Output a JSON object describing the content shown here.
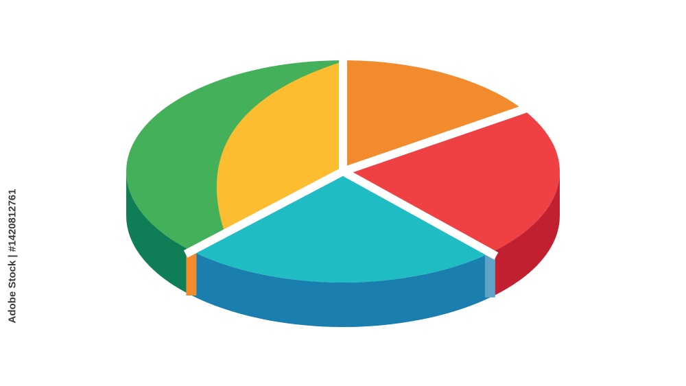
{
  "chart_data": {
    "type": "pie",
    "style": "3d-isometric",
    "start_angle": -90,
    "direction": "clockwise",
    "slices": [
      {
        "value": 15.6,
        "color": "#f28a2e",
        "side_color": "#d06f1c"
      },
      {
        "value": 22.5,
        "color": "#ef4044",
        "side_color": "#c0202f"
      },
      {
        "value": 24.2,
        "color": "#1fbcc4",
        "side_color": "#1a7fae"
      },
      {
        "value": 37.7,
        "color": "#45b05a",
        "side_color": "#0f7d55",
        "inner_color": "#fdbd31"
      }
    ],
    "legend": "none",
    "labels": "none"
  },
  "watermark": {
    "text": "Adobe Stock"
  },
  "credit": "Adobe Stock | #1420812761"
}
